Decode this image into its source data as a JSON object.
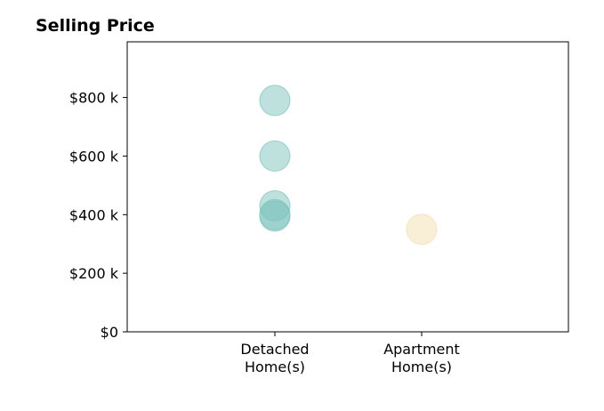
{
  "chart_data": {
    "type": "scatter",
    "title": "Selling Price",
    "xlabel": "",
    "ylabel": "",
    "categories": [
      [
        "Detached",
        "Home(s)"
      ],
      [
        "Apartment",
        "Home(s)"
      ]
    ],
    "ylim": [
      0,
      990000
    ],
    "yticks": [
      0,
      200000,
      400000,
      600000,
      800000
    ],
    "ytick_labels": [
      "$0",
      "$200 k",
      "$400 k",
      "$600 k",
      "$800 k"
    ],
    "grid": false,
    "series": [
      {
        "category": "Detached Home(s)",
        "color": "#7ec4bd",
        "points": [
          {
            "category_index": 0,
            "value": 790000
          },
          {
            "category_index": 0,
            "value": 600000
          },
          {
            "category_index": 0,
            "value": 430000
          },
          {
            "category_index": 0,
            "value": 400000
          },
          {
            "category_index": 0,
            "value": 395000
          }
        ]
      },
      {
        "category": "Apartment Home(s)",
        "color": "#f3dfb0",
        "points": [
          {
            "category_index": 1,
            "value": 350000
          }
        ]
      }
    ]
  }
}
